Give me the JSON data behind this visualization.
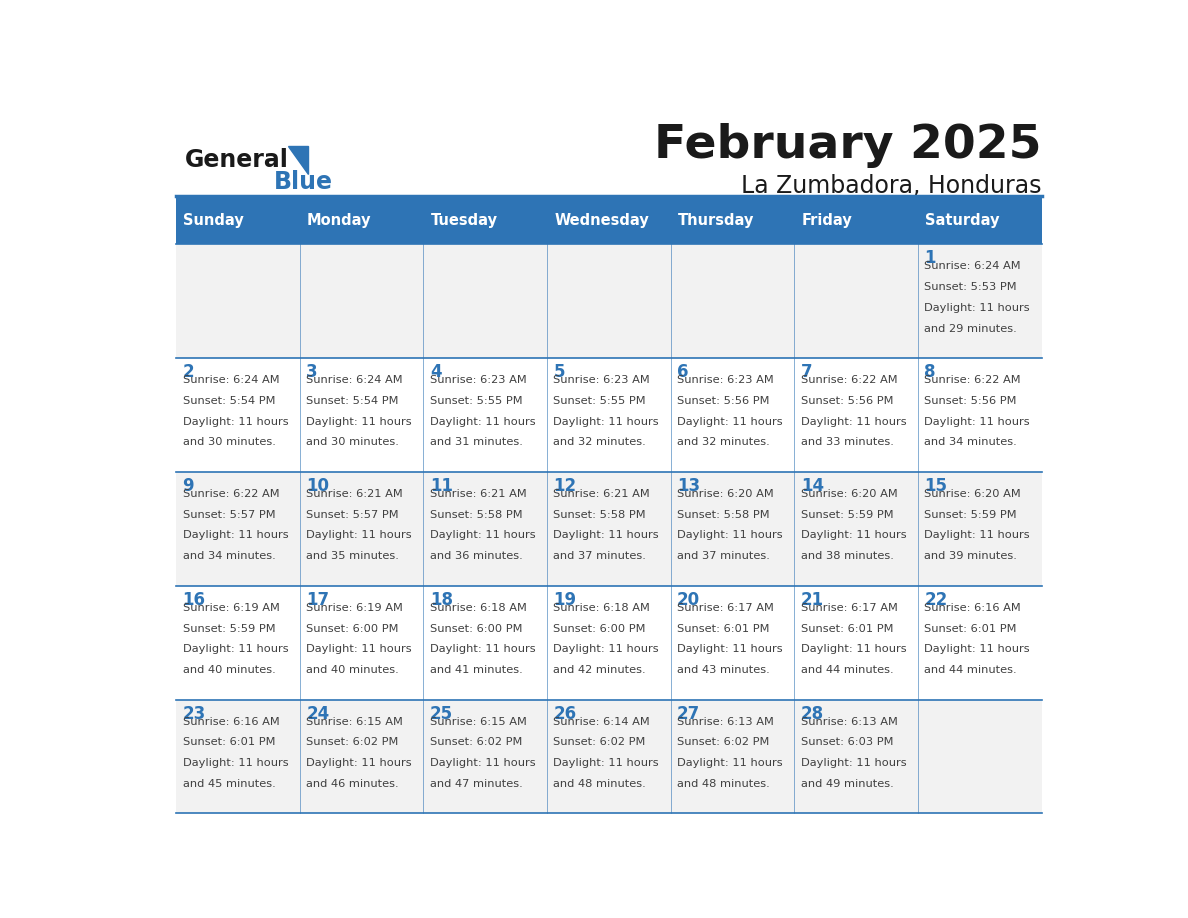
{
  "title": "February 2025",
  "subtitle": "La Zumbadora, Honduras",
  "header_bg": "#2E74B5",
  "header_text_color": "#FFFFFF",
  "cell_bg_light": "#F2F2F2",
  "cell_bg_white": "#FFFFFF",
  "border_color": "#2E74B5",
  "day_names": [
    "Sunday",
    "Monday",
    "Tuesday",
    "Wednesday",
    "Thursday",
    "Friday",
    "Saturday"
  ],
  "title_color": "#1a1a1a",
  "subtitle_color": "#1a1a1a",
  "day_number_color": "#2E74B5",
  "info_text_color": "#404040",
  "calendar": [
    [
      null,
      null,
      null,
      null,
      null,
      null,
      1
    ],
    [
      2,
      3,
      4,
      5,
      6,
      7,
      8
    ],
    [
      9,
      10,
      11,
      12,
      13,
      14,
      15
    ],
    [
      16,
      17,
      18,
      19,
      20,
      21,
      22
    ],
    [
      23,
      24,
      25,
      26,
      27,
      28,
      null
    ]
  ],
  "sun_data": {
    "1": {
      "rise": "6:24 AM",
      "set": "5:53 PM",
      "daylight": "11 hours and 29 minutes."
    },
    "2": {
      "rise": "6:24 AM",
      "set": "5:54 PM",
      "daylight": "11 hours and 30 minutes."
    },
    "3": {
      "rise": "6:24 AM",
      "set": "5:54 PM",
      "daylight": "11 hours and 30 minutes."
    },
    "4": {
      "rise": "6:23 AM",
      "set": "5:55 PM",
      "daylight": "11 hours and 31 minutes."
    },
    "5": {
      "rise": "6:23 AM",
      "set": "5:55 PM",
      "daylight": "11 hours and 32 minutes."
    },
    "6": {
      "rise": "6:23 AM",
      "set": "5:56 PM",
      "daylight": "11 hours and 32 minutes."
    },
    "7": {
      "rise": "6:22 AM",
      "set": "5:56 PM",
      "daylight": "11 hours and 33 minutes."
    },
    "8": {
      "rise": "6:22 AM",
      "set": "5:56 PM",
      "daylight": "11 hours and 34 minutes."
    },
    "9": {
      "rise": "6:22 AM",
      "set": "5:57 PM",
      "daylight": "11 hours and 34 minutes."
    },
    "10": {
      "rise": "6:21 AM",
      "set": "5:57 PM",
      "daylight": "11 hours and 35 minutes."
    },
    "11": {
      "rise": "6:21 AM",
      "set": "5:58 PM",
      "daylight": "11 hours and 36 minutes."
    },
    "12": {
      "rise": "6:21 AM",
      "set": "5:58 PM",
      "daylight": "11 hours and 37 minutes."
    },
    "13": {
      "rise": "6:20 AM",
      "set": "5:58 PM",
      "daylight": "11 hours and 37 minutes."
    },
    "14": {
      "rise": "6:20 AM",
      "set": "5:59 PM",
      "daylight": "11 hours and 38 minutes."
    },
    "15": {
      "rise": "6:20 AM",
      "set": "5:59 PM",
      "daylight": "11 hours and 39 minutes."
    },
    "16": {
      "rise": "6:19 AM",
      "set": "5:59 PM",
      "daylight": "11 hours and 40 minutes."
    },
    "17": {
      "rise": "6:19 AM",
      "set": "6:00 PM",
      "daylight": "11 hours and 40 minutes."
    },
    "18": {
      "rise": "6:18 AM",
      "set": "6:00 PM",
      "daylight": "11 hours and 41 minutes."
    },
    "19": {
      "rise": "6:18 AM",
      "set": "6:00 PM",
      "daylight": "11 hours and 42 minutes."
    },
    "20": {
      "rise": "6:17 AM",
      "set": "6:01 PM",
      "daylight": "11 hours and 43 minutes."
    },
    "21": {
      "rise": "6:17 AM",
      "set": "6:01 PM",
      "daylight": "11 hours and 44 minutes."
    },
    "22": {
      "rise": "6:16 AM",
      "set": "6:01 PM",
      "daylight": "11 hours and 44 minutes."
    },
    "23": {
      "rise": "6:16 AM",
      "set": "6:01 PM",
      "daylight": "11 hours and 45 minutes."
    },
    "24": {
      "rise": "6:15 AM",
      "set": "6:02 PM",
      "daylight": "11 hours and 46 minutes."
    },
    "25": {
      "rise": "6:15 AM",
      "set": "6:02 PM",
      "daylight": "11 hours and 47 minutes."
    },
    "26": {
      "rise": "6:14 AM",
      "set": "6:02 PM",
      "daylight": "11 hours and 48 minutes."
    },
    "27": {
      "rise": "6:13 AM",
      "set": "6:02 PM",
      "daylight": "11 hours and 48 minutes."
    },
    "28": {
      "rise": "6:13 AM",
      "set": "6:03 PM",
      "daylight": "11 hours and 49 minutes."
    }
  }
}
